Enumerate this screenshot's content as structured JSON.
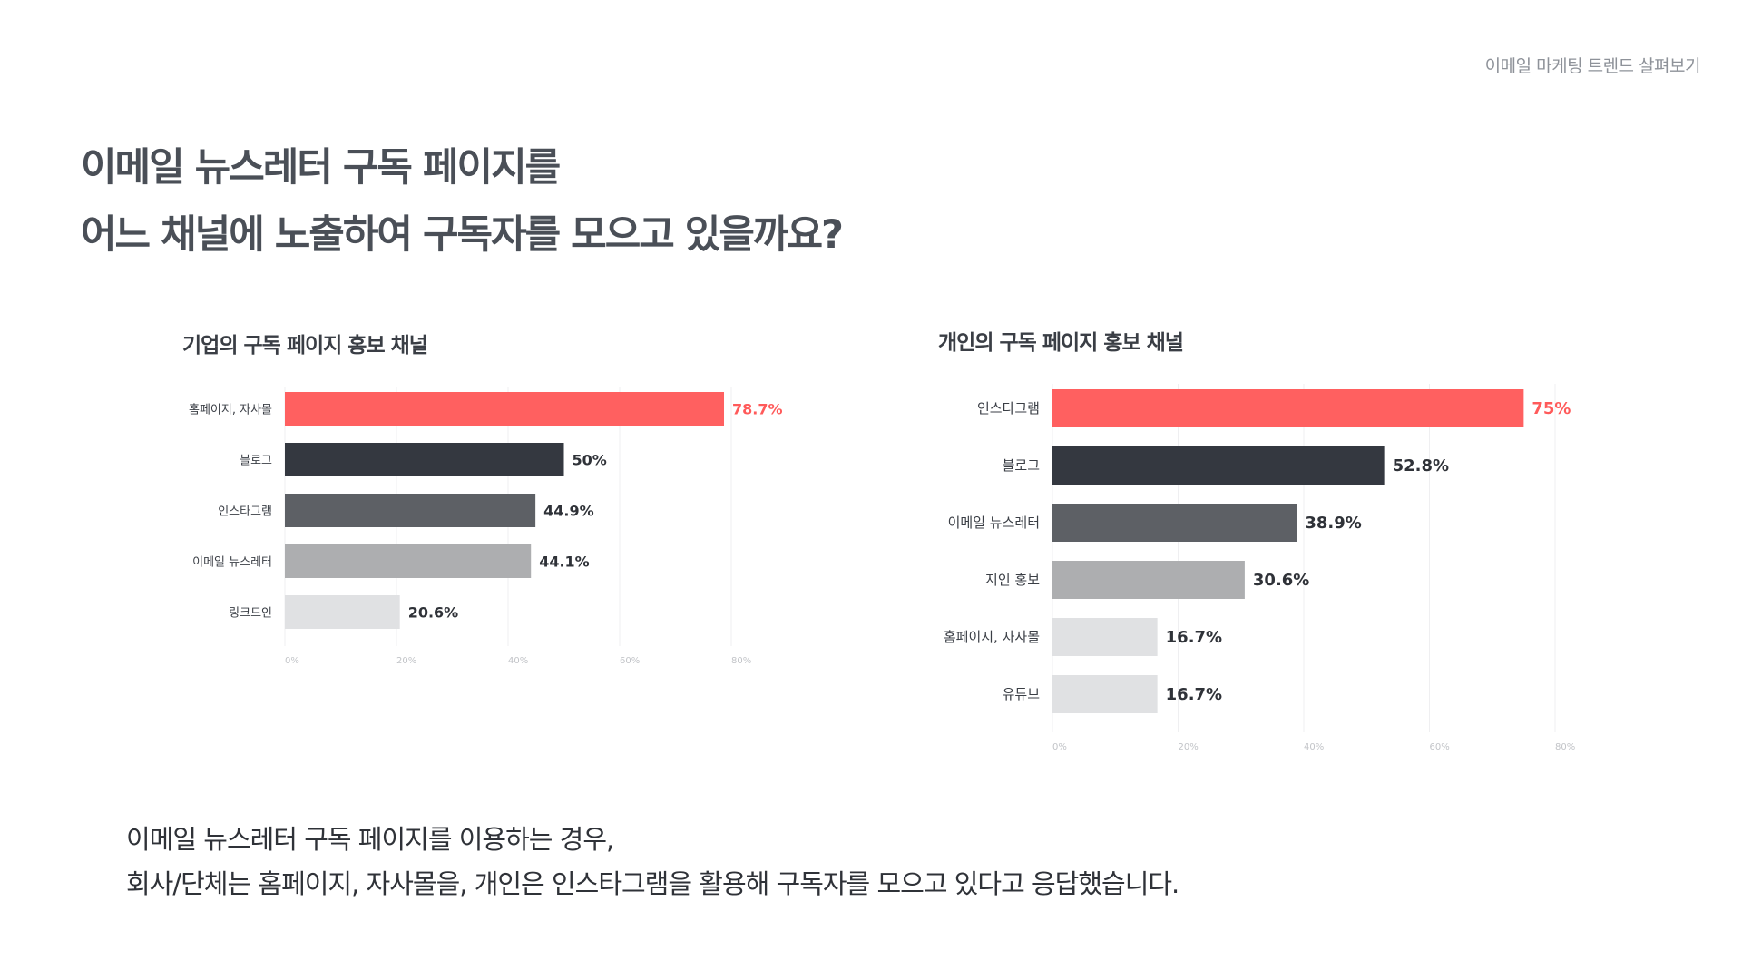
{
  "header": {
    "section_label": "이메일 마케팅 트렌드 살펴보기"
  },
  "headline": {
    "line1": "이메일 뉴스레터 구독 페이지를",
    "line2": "어느 채널에 노출하여 구독자를 모으고 있을까요?"
  },
  "colors": {
    "accent": "#ff6060",
    "dark": "#343840",
    "mid": "#5d6065",
    "light": "#adaeb0",
    "lighter": "#e0e1e3"
  },
  "chart_data": [
    {
      "type": "bar",
      "orientation": "horizontal",
      "title": "기업의 구독 페이지 홍보 채널",
      "categories": [
        "홈페이지, 자사몰",
        "블로그",
        "인스타그램",
        "이메일 뉴스레터",
        "링크드인"
      ],
      "values": [
        78.7,
        50,
        44.9,
        44.1,
        20.6
      ],
      "value_labels": [
        "78.7%",
        "50%",
        "44.9%",
        "44.1%",
        "20.6%"
      ],
      "bar_colors": [
        "#ff6060",
        "#343840",
        "#5d6065",
        "#adaeb0",
        "#e0e1e3"
      ],
      "label_colors": [
        "#ff5a5a",
        "#2f3238",
        "#2f3238",
        "#2f3238",
        "#2f3238"
      ],
      "xticks": [
        "0%",
        "20%",
        "40%",
        "60%",
        "80%"
      ],
      "xlim": [
        0,
        80
      ],
      "grid": true,
      "legend": "none"
    },
    {
      "type": "bar",
      "orientation": "horizontal",
      "title": "개인의 구독 페이지 홍보 채널",
      "categories": [
        "인스타그램",
        "블로그",
        "이메일 뉴스레터",
        "지인 홍보",
        "홈페이지, 자사몰",
        "유튜브"
      ],
      "values": [
        75,
        52.8,
        38.9,
        30.6,
        16.7,
        16.7
      ],
      "value_labels": [
        "75%",
        "52.8%",
        "38.9%",
        "30.6%",
        "16.7%",
        "16.7%"
      ],
      "bar_colors": [
        "#ff6060",
        "#343840",
        "#5d6065",
        "#adaeb0",
        "#e0e1e3",
        "#e0e1e3"
      ],
      "label_colors": [
        "#ff5a5a",
        "#2f3238",
        "#2f3238",
        "#2f3238",
        "#2f3238",
        "#2f3238"
      ],
      "xticks": [
        "0%",
        "20%",
        "40%",
        "60%",
        "80%"
      ],
      "xlim": [
        0,
        80
      ],
      "grid": true,
      "legend": "none"
    }
  ],
  "summary": {
    "line1": "이메일 뉴스레터 구독 페이지를 이용하는 경우,",
    "line2": "회사/단체는 홈페이지, 자사몰을, 개인은 인스타그램을 활용해 구독자를 모으고 있다고 응답했습니다."
  }
}
